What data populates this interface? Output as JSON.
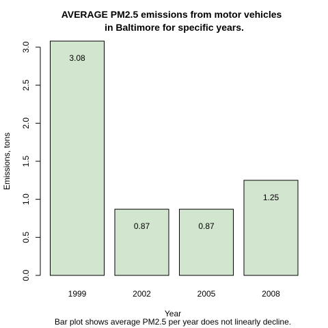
{
  "chart_data": {
    "type": "bar",
    "title_lines": [
      "AVERAGE PM2.5 emissions from motor vehicles",
      "in Baltimore for specific years."
    ],
    "categories": [
      "1999",
      "2002",
      "2005",
      "2008"
    ],
    "values": [
      3.08,
      0.87,
      0.87,
      1.25
    ],
    "data_labels": [
      "3.08",
      "0.87",
      "0.87",
      "1.25"
    ],
    "xlabel": "Year",
    "ylabel": "Emissions, tons",
    "caption": "Bar plot shows average PM2.5 per year does not linearly decline.",
    "ylim": [
      0,
      3.0
    ],
    "yticks": [
      "0.0",
      "0.5",
      "1.0",
      "1.5",
      "2.0",
      "2.5",
      "3.0"
    ],
    "bar_color": "#d1e5cf",
    "grid": false
  }
}
